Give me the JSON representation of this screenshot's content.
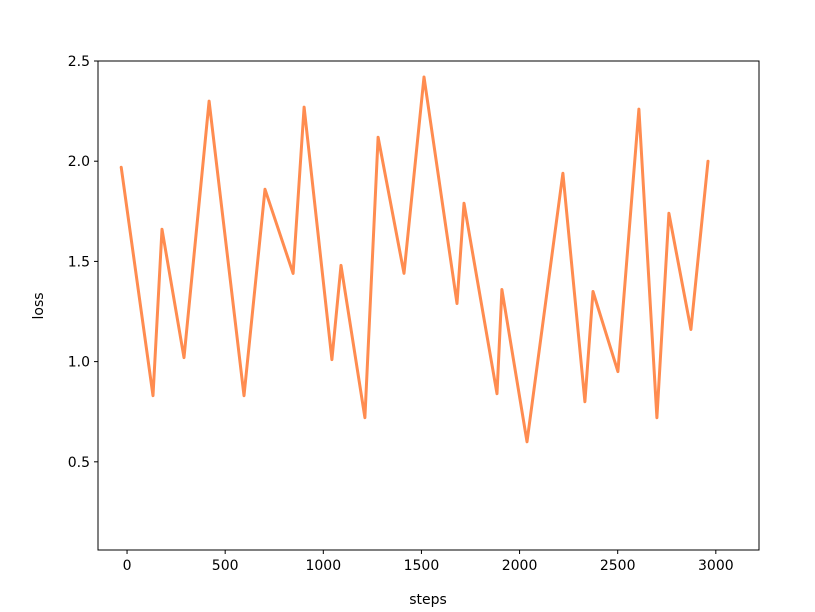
{
  "chart_data": {
    "type": "line",
    "title": "",
    "xlabel": "steps",
    "ylabel": "loss",
    "xlim": [
      -148,
      3220
    ],
    "ylim": [
      0.06,
      2.5
    ],
    "xticks": [
      0,
      500,
      1000,
      1500,
      2000,
      2500,
      3000
    ],
    "yticks": [
      0.5,
      1.0,
      1.5,
      2.0,
      2.5
    ],
    "xtick_labels": [
      "0",
      "500",
      "1000",
      "1500",
      "2000",
      "2500",
      "3000"
    ],
    "ytick_labels": [
      "0.5",
      "1.0",
      "1.5",
      "2.0",
      "2.5"
    ],
    "grid": false,
    "series": [
      {
        "color": "#ff8c50",
        "x": [
          -30,
          132,
          178,
          290,
          418,
          596,
          703,
          846,
          902,
          1044,
          1090,
          1212,
          1279,
          1411,
          1513,
          1681,
          1717,
          1885,
          1910,
          2038,
          2221,
          2333,
          2374,
          2501,
          2608,
          2700,
          2761,
          2873,
          2960
        ],
        "y": [
          1.97,
          0.83,
          1.66,
          1.02,
          2.3,
          0.83,
          1.86,
          1.44,
          2.27,
          1.01,
          1.48,
          0.72,
          2.12,
          1.44,
          2.42,
          1.29,
          1.79,
          0.84,
          1.36,
          0.6,
          1.94,
          0.8,
          1.35,
          0.95,
          2.26,
          0.72,
          1.74,
          1.16,
          2.0
        ]
      }
    ]
  }
}
